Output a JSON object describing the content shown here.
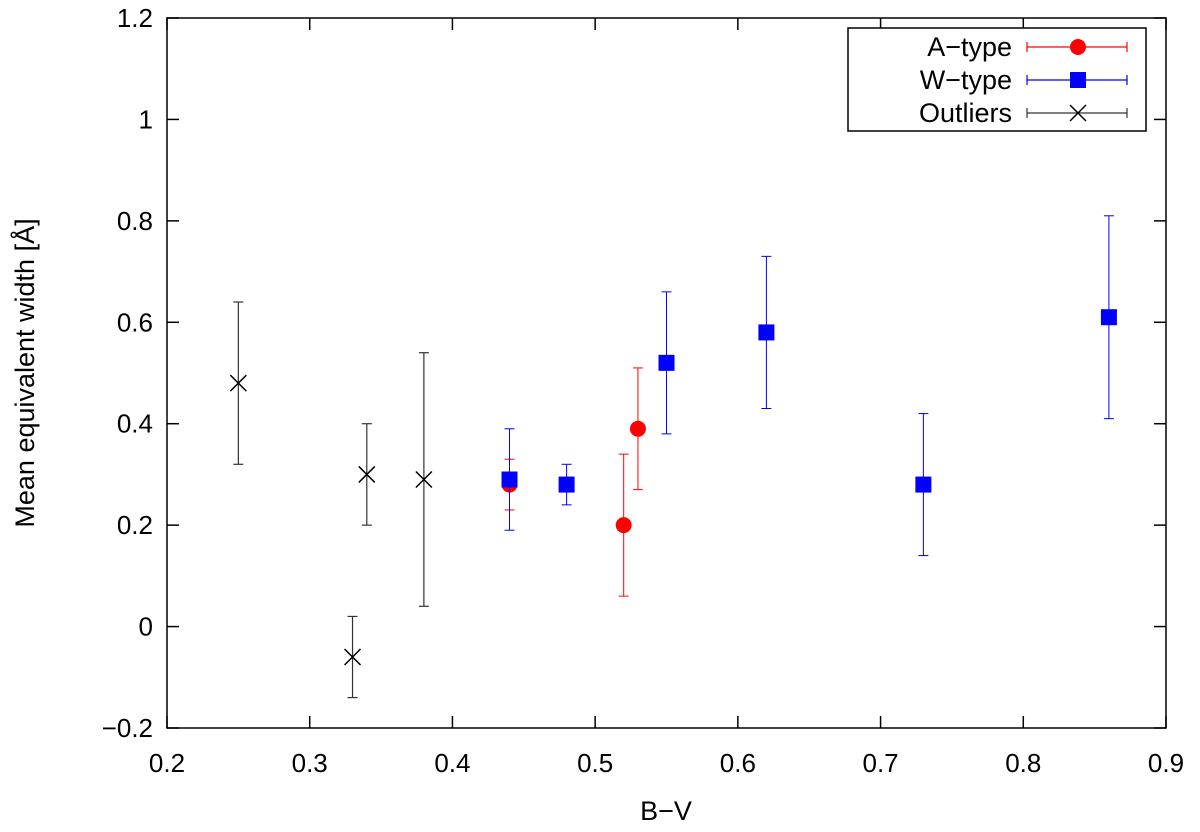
{
  "chart_data": {
    "type": "scatter",
    "title": "",
    "xlabel": "B−V",
    "ylabel": "Mean equivalent width [Å]",
    "xlim": [
      0.2,
      0.9
    ],
    "ylim": [
      -0.2,
      1.2
    ],
    "xticks": [
      0.2,
      0.3,
      0.4,
      0.5,
      0.6,
      0.7,
      0.8,
      0.9
    ],
    "xtick_labels": [
      "0.2",
      "0.3",
      "0.4",
      "0.5",
      "0.6",
      "0.7",
      "0.8",
      "0.9"
    ],
    "yticks": [
      -0.2,
      0,
      0.2,
      0.4,
      0.6,
      0.8,
      1,
      1.2
    ],
    "ytick_labels": [
      "−0.2",
      "0",
      "0.2",
      "0.4",
      "0.6",
      "0.8",
      "1",
      "1.2"
    ],
    "grid": false,
    "legend_position": "top-right",
    "series": [
      {
        "name": "A−type",
        "marker": "circle",
        "color": "#ff0000",
        "points": [
          {
            "x": 0.44,
            "y": 0.28,
            "yerr_low": 0.23,
            "yerr_high": 0.33
          },
          {
            "x": 0.52,
            "y": 0.2,
            "yerr_low": 0.06,
            "yerr_high": 0.34
          },
          {
            "x": 0.53,
            "y": 0.39,
            "yerr_low": 0.27,
            "yerr_high": 0.51
          }
        ]
      },
      {
        "name": "W−type",
        "marker": "square",
        "color": "#0000ff",
        "points": [
          {
            "x": 0.44,
            "y": 0.29,
            "yerr_low": 0.19,
            "yerr_high": 0.39
          },
          {
            "x": 0.48,
            "y": 0.28,
            "yerr_low": 0.24,
            "yerr_high": 0.32
          },
          {
            "x": 0.55,
            "y": 0.52,
            "yerr_low": 0.38,
            "yerr_high": 0.66
          },
          {
            "x": 0.62,
            "y": 0.58,
            "yerr_low": 0.43,
            "yerr_high": 0.73
          },
          {
            "x": 0.73,
            "y": 0.28,
            "yerr_low": 0.14,
            "yerr_high": 0.42
          },
          {
            "x": 0.86,
            "y": 0.61,
            "yerr_low": 0.41,
            "yerr_high": 0.81
          }
        ]
      },
      {
        "name": "Outliers",
        "marker": "cross",
        "color": "#000000",
        "points": [
          {
            "x": 0.25,
            "y": 0.48,
            "yerr_low": 0.32,
            "yerr_high": 0.64
          },
          {
            "x": 0.33,
            "y": -0.06,
            "yerr_low": -0.14,
            "yerr_high": 0.02
          },
          {
            "x": 0.34,
            "y": 0.3,
            "yerr_low": 0.2,
            "yerr_high": 0.4
          },
          {
            "x": 0.38,
            "y": 0.29,
            "yerr_low": 0.04,
            "yerr_high": 0.54
          }
        ]
      }
    ]
  }
}
